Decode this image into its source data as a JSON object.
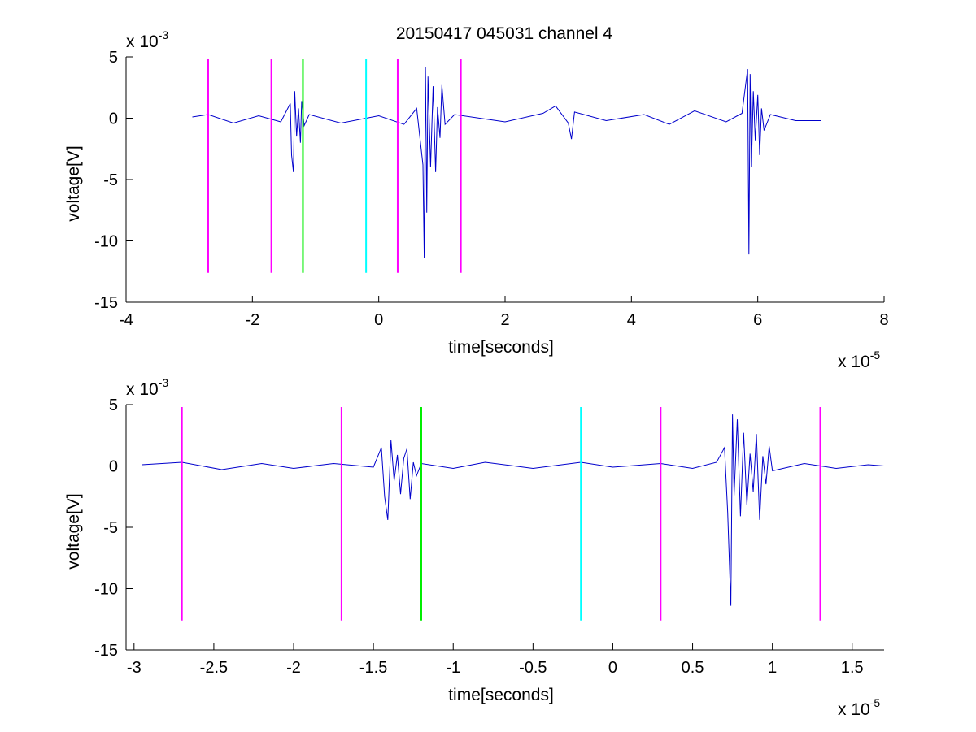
{
  "figure": {
    "title": "20150417 045031 channel 4"
  },
  "colors": {
    "signal": "#0000cc",
    "magenta": "#ff00ff",
    "green": "#00ee00",
    "cyan": "#00ffff",
    "axis": "#000000"
  },
  "chart_data": [
    {
      "type": "line",
      "title": "20150417 045031 channel 4",
      "xlabel": "time[seconds]",
      "ylabel": "voltage[V]",
      "x_exponent_label": "x 10",
      "x_exponent": "-5",
      "y_exponent_label": "x 10",
      "y_exponent": "-3",
      "xlim": [
        -4,
        8
      ],
      "ylim": [
        -15,
        5
      ],
      "xticks": [
        -4,
        -2,
        0,
        2,
        4,
        6,
        8
      ],
      "xtick_labels": [
        "-4",
        "-2",
        "0",
        "2",
        "4",
        "6",
        "8"
      ],
      "yticks": [
        -15,
        -10,
        -5,
        0,
        5
      ],
      "ytick_labels": [
        "-15",
        "-10",
        "-5",
        "0",
        "5"
      ],
      "grid": false,
      "series": [
        {
          "points": [
            [
              -2.95,
              0.1
            ],
            [
              -2.7,
              0.3
            ],
            [
              -2.3,
              -0.4
            ],
            [
              -1.9,
              0.2
            ],
            [
              -1.55,
              -0.3
            ],
            [
              -1.4,
              1.2
            ],
            [
              -1.38,
              -3.0
            ],
            [
              -1.35,
              -4.4
            ],
            [
              -1.33,
              2.2
            ],
            [
              -1.3,
              -1.5
            ],
            [
              -1.27,
              0.8
            ],
            [
              -1.24,
              -2.0
            ],
            [
              -1.22,
              1.4
            ],
            [
              -1.18,
              -0.6
            ],
            [
              -1.1,
              0.3
            ],
            [
              -0.6,
              -0.4
            ],
            [
              0.0,
              0.2
            ],
            [
              0.4,
              -0.5
            ],
            [
              0.6,
              0.8
            ],
            [
              0.7,
              -3.8
            ],
            [
              0.72,
              -11.4
            ],
            [
              0.74,
              4.2
            ],
            [
              0.76,
              -7.7
            ],
            [
              0.78,
              3.4
            ],
            [
              0.82,
              -4.0
            ],
            [
              0.86,
              2.6
            ],
            [
              0.9,
              -4.4
            ],
            [
              0.93,
              0.9
            ],
            [
              0.97,
              -1.6
            ],
            [
              1.0,
              2.7
            ],
            [
              1.05,
              -0.5
            ],
            [
              1.2,
              0.3
            ],
            [
              2.0,
              -0.3
            ],
            [
              2.6,
              0.4
            ],
            [
              2.8,
              1.0
            ],
            [
              3.0,
              -0.4
            ],
            [
              3.05,
              -1.7
            ],
            [
              3.1,
              0.5
            ],
            [
              3.6,
              -0.2
            ],
            [
              4.2,
              0.3
            ],
            [
              4.6,
              -0.5
            ],
            [
              5.0,
              0.6
            ],
            [
              5.5,
              -0.3
            ],
            [
              5.75,
              0.4
            ],
            [
              5.84,
              4.0
            ],
            [
              5.86,
              -11.1
            ],
            [
              5.88,
              3.6
            ],
            [
              5.9,
              -4.0
            ],
            [
              5.93,
              2.2
            ],
            [
              5.96,
              -1.8
            ],
            [
              6.0,
              1.9
            ],
            [
              6.03,
              -3.0
            ],
            [
              6.06,
              0.8
            ],
            [
              6.1,
              -1.0
            ],
            [
              6.2,
              0.3
            ],
            [
              6.6,
              -0.2
            ],
            [
              7.0,
              -0.2
            ]
          ]
        }
      ],
      "markers": [
        {
          "x": -2.7,
          "color": "magenta"
        },
        {
          "x": -1.7,
          "color": "magenta"
        },
        {
          "x": -1.2,
          "color": "green"
        },
        {
          "x": -0.2,
          "color": "cyan"
        },
        {
          "x": 0.3,
          "color": "magenta"
        },
        {
          "x": 1.3,
          "color": "magenta"
        }
      ],
      "marker_y_range": [
        -12.6,
        4.8
      ]
    },
    {
      "type": "line",
      "title": "",
      "xlabel": "time[seconds]",
      "ylabel": "voltage[V]",
      "x_exponent_label": "x 10",
      "x_exponent": "-5",
      "y_exponent_label": "x 10",
      "y_exponent": "-3",
      "xlim": [
        -3.05,
        1.7
      ],
      "ylim": [
        -15,
        5
      ],
      "xticks": [
        -3,
        -2.5,
        -2,
        -1.5,
        -1,
        -0.5,
        0,
        0.5,
        1,
        1.5
      ],
      "xtick_labels": [
        "-3",
        "-2.5",
        "-2",
        "-1.5",
        "-1",
        "-0.5",
        "0",
        "0.5",
        "1",
        "1.5"
      ],
      "yticks": [
        -15,
        -10,
        -5,
        0,
        5
      ],
      "ytick_labels": [
        "-15",
        "-10",
        "-5",
        "0",
        "5"
      ],
      "grid": false,
      "series": [
        {
          "points": [
            [
              -2.95,
              0.1
            ],
            [
              -2.7,
              0.3
            ],
            [
              -2.45,
              -0.3
            ],
            [
              -2.2,
              0.2
            ],
            [
              -2.0,
              -0.2
            ],
            [
              -1.75,
              0.2
            ],
            [
              -1.5,
              -0.1
            ],
            [
              -1.45,
              1.5
            ],
            [
              -1.43,
              -2.5
            ],
            [
              -1.41,
              -4.4
            ],
            [
              -1.39,
              2.1
            ],
            [
              -1.37,
              -1.2
            ],
            [
              -1.35,
              0.9
            ],
            [
              -1.33,
              -2.3
            ],
            [
              -1.31,
              0.6
            ],
            [
              -1.29,
              1.4
            ],
            [
              -1.27,
              -2.7
            ],
            [
              -1.25,
              0.3
            ],
            [
              -1.23,
              -0.8
            ],
            [
              -1.2,
              0.2
            ],
            [
              -1.0,
              -0.2
            ],
            [
              -0.8,
              0.3
            ],
            [
              -0.5,
              -0.2
            ],
            [
              -0.2,
              0.3
            ],
            [
              0.0,
              -0.1
            ],
            [
              0.3,
              0.2
            ],
            [
              0.5,
              -0.2
            ],
            [
              0.65,
              0.3
            ],
            [
              0.7,
              1.5
            ],
            [
              0.72,
              -3.8
            ],
            [
              0.73,
              -7.7
            ],
            [
              0.74,
              -11.4
            ],
            [
              0.75,
              4.2
            ],
            [
              0.76,
              -2.4
            ],
            [
              0.78,
              3.8
            ],
            [
              0.8,
              -4.1
            ],
            [
              0.82,
              2.7
            ],
            [
              0.84,
              -3.2
            ],
            [
              0.86,
              1.0
            ],
            [
              0.88,
              -2.1
            ],
            [
              0.9,
              2.6
            ],
            [
              0.92,
              -4.4
            ],
            [
              0.94,
              0.8
            ],
            [
              0.96,
              -1.5
            ],
            [
              0.98,
              1.6
            ],
            [
              1.0,
              -0.4
            ],
            [
              1.2,
              0.2
            ],
            [
              1.4,
              -0.2
            ],
            [
              1.6,
              0.1
            ],
            [
              1.7,
              0.0
            ]
          ]
        }
      ],
      "markers": [
        {
          "x": -2.7,
          "color": "magenta"
        },
        {
          "x": -1.7,
          "color": "magenta"
        },
        {
          "x": -1.2,
          "color": "green"
        },
        {
          "x": -0.2,
          "color": "cyan"
        },
        {
          "x": 0.3,
          "color": "magenta"
        },
        {
          "x": 1.3,
          "color": "magenta"
        }
      ],
      "marker_y_range": [
        -12.6,
        4.8
      ]
    }
  ]
}
